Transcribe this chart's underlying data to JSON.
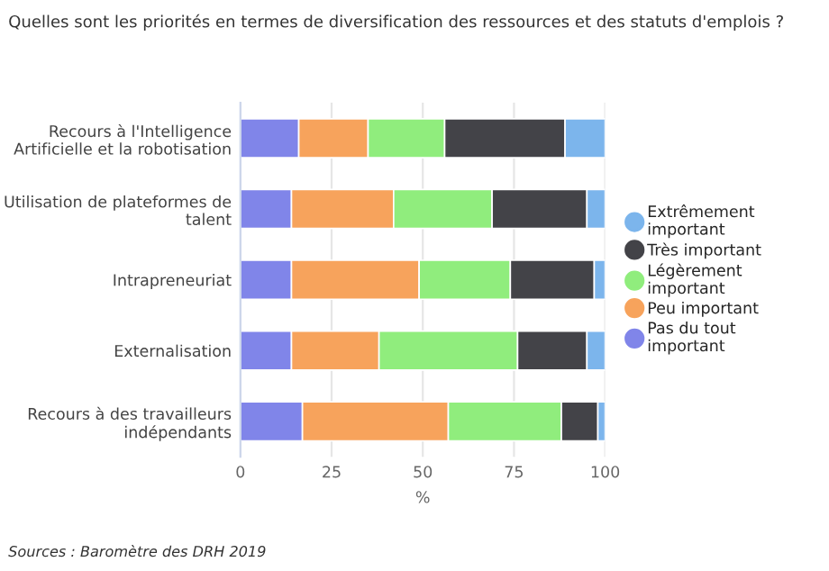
{
  "chart_data": {
    "type": "bar",
    "orientation": "horizontal",
    "stacked": true,
    "title": "Quelles sont les priorités en termes de diversification des ressources et des statuts d'emplois ?",
    "categories": [
      "Recours à l'Intelligence Artificielle et la robotisation",
      "Utilisation de plateformes de talent",
      "Intrapreneuriat",
      "Externalisation",
      "Recours à des travailleurs indépendants"
    ],
    "series": [
      {
        "name": "Pas du tout important",
        "color": "#8085e9",
        "values": [
          16,
          14,
          14,
          14,
          17
        ]
      },
      {
        "name": "Peu important",
        "color": "#f7a35c",
        "values": [
          19,
          28,
          35,
          24,
          40
        ]
      },
      {
        "name": "Légèrement important",
        "color": "#90ed7d",
        "values": [
          21,
          27,
          25,
          38,
          31
        ]
      },
      {
        "name": "Très important",
        "color": "#434348",
        "values": [
          33,
          26,
          23,
          19,
          10
        ]
      },
      {
        "name": "Extrêmement important",
        "color": "#7cb5ec",
        "values": [
          11,
          5,
          3,
          5,
          2
        ]
      }
    ],
    "xlabel": "%",
    "xlim": [
      0,
      100
    ],
    "xticks": [
      0,
      25,
      50,
      75,
      100
    ],
    "grid": "x",
    "legend": "right",
    "marker": "circle",
    "annotations": [
      "Sources : Baromètre des DRH 2019"
    ]
  }
}
